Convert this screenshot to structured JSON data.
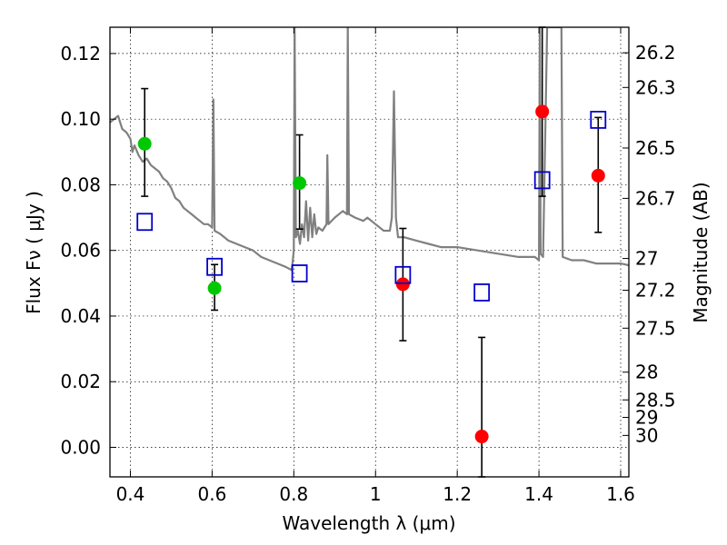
{
  "chart_data": {
    "type": "scatter",
    "xlabel": "Wavelength  λ (μm)",
    "ylabel": "Flux  Fν  ( μJy )",
    "y2label": "Magnitude (AB)",
    "xlim": [
      0.35,
      1.62
    ],
    "ylim": [
      -0.009,
      0.128
    ],
    "grid": true,
    "x_ticks": [
      0.4,
      0.6,
      0.8,
      1.0,
      1.2,
      1.4,
      1.6
    ],
    "x_tick_labels": [
      "0.4",
      "0.6",
      "0.8",
      "1",
      "1.2",
      "1.4",
      "1.6"
    ],
    "y_ticks": [
      0.0,
      0.02,
      0.04,
      0.06,
      0.08,
      0.1,
      0.12
    ],
    "y_tick_labels": [
      "0.00",
      "0.02",
      "0.04",
      "0.06",
      "0.08",
      "0.10",
      "0.12"
    ],
    "mag_ticks": [
      26.2,
      26.3,
      26.5,
      26.7,
      27,
      27.2,
      27.5,
      28,
      28.5,
      29,
      30
    ],
    "mag_tick_labels": [
      "26.2",
      "26.3",
      "26.5",
      "26.7",
      "27",
      "27.2",
      "27.5",
      "28",
      "28.5",
      "29",
      "30"
    ],
    "colors": {
      "detection_green": "#00c800",
      "detection_red": "#ff0000",
      "model": "#0000cc",
      "sed": "#808080",
      "errorbar": "#000000"
    },
    "series": [
      {
        "marker": "circle",
        "color": "#00c800",
        "points": [
          {
            "x": 0.435,
            "y": 0.0925,
            "ylo": 0.0765,
            "yhi": 0.1093
          },
          {
            "x": 0.606,
            "y": 0.0485,
            "ylo": 0.0418,
            "yhi": 0.0557
          },
          {
            "x": 0.814,
            "y": 0.0805,
            "ylo": 0.0665,
            "yhi": 0.0952
          }
        ]
      },
      {
        "marker": "circle",
        "color": "#ff0000",
        "points": [
          {
            "x": 1.067,
            "y": 0.0497,
            "ylo": 0.0325,
            "yhi": 0.0667
          },
          {
            "x": 1.26,
            "y": 0.0033,
            "ylo": -0.009,
            "yhi": 0.0335
          },
          {
            "x": 1.408,
            "y": 0.1023,
            "ylo": 0.0765,
            "yhi": 0.128
          },
          {
            "x": 1.545,
            "y": 0.0828,
            "ylo": 0.0655,
            "yhi": 0.1005
          }
        ]
      },
      {
        "marker": "open-square",
        "color": "#0000cc",
        "points": [
          {
            "x": 0.435,
            "y": 0.0687
          },
          {
            "x": 0.606,
            "y": 0.055
          },
          {
            "x": 0.814,
            "y": 0.053
          },
          {
            "x": 1.067,
            "y": 0.0525
          },
          {
            "x": 1.26,
            "y": 0.0472
          },
          {
            "x": 1.408,
            "y": 0.0814
          },
          {
            "x": 1.545,
            "y": 0.0998
          }
        ]
      }
    ],
    "sed_curve": [
      [
        0.35,
        0.099
      ],
      [
        0.36,
        0.1
      ],
      [
        0.37,
        0.101
      ],
      [
        0.375,
        0.099
      ],
      [
        0.38,
        0.097
      ],
      [
        0.39,
        0.096
      ],
      [
        0.4,
        0.094
      ],
      [
        0.405,
        0.09
      ],
      [
        0.41,
        0.092
      ],
      [
        0.42,
        0.089
      ],
      [
        0.43,
        0.087
      ],
      [
        0.44,
        0.088
      ],
      [
        0.45,
        0.086
      ],
      [
        0.46,
        0.085
      ],
      [
        0.47,
        0.084
      ],
      [
        0.48,
        0.082
      ],
      [
        0.49,
        0.081
      ],
      [
        0.5,
        0.079
      ],
      [
        0.51,
        0.076
      ],
      [
        0.52,
        0.075
      ],
      [
        0.53,
        0.073
      ],
      [
        0.54,
        0.072
      ],
      [
        0.55,
        0.071
      ],
      [
        0.56,
        0.07
      ],
      [
        0.57,
        0.069
      ],
      [
        0.58,
        0.068
      ],
      [
        0.59,
        0.068
      ],
      [
        0.6,
        0.067
      ],
      [
        0.603,
        0.106
      ],
      [
        0.606,
        0.066
      ],
      [
        0.62,
        0.065
      ],
      [
        0.64,
        0.063
      ],
      [
        0.66,
        0.062
      ],
      [
        0.68,
        0.061
      ],
      [
        0.7,
        0.06
      ],
      [
        0.72,
        0.058
      ],
      [
        0.74,
        0.057
      ],
      [
        0.76,
        0.056
      ],
      [
        0.78,
        0.055
      ],
      [
        0.795,
        0.054
      ],
      [
        0.8,
        0.06
      ],
      [
        0.802,
        0.128
      ],
      [
        0.805,
        0.064
      ],
      [
        0.81,
        0.066
      ],
      [
        0.815,
        0.062
      ],
      [
        0.82,
        0.068
      ],
      [
        0.825,
        0.064
      ],
      [
        0.83,
        0.075
      ],
      [
        0.835,
        0.063
      ],
      [
        0.84,
        0.073
      ],
      [
        0.845,
        0.064
      ],
      [
        0.85,
        0.071
      ],
      [
        0.855,
        0.065
      ],
      [
        0.86,
        0.067
      ],
      [
        0.87,
        0.066
      ],
      [
        0.88,
        0.068
      ],
      [
        0.882,
        0.089
      ],
      [
        0.885,
        0.068
      ],
      [
        0.9,
        0.07
      ],
      [
        0.92,
        0.072
      ],
      [
        0.93,
        0.071
      ],
      [
        0.932,
        0.128
      ],
      [
        0.935,
        0.071
      ],
      [
        0.95,
        0.07
      ],
      [
        0.97,
        0.069
      ],
      [
        0.98,
        0.07
      ],
      [
        1.0,
        0.068
      ],
      [
        1.02,
        0.066
      ],
      [
        1.035,
        0.066
      ],
      [
        1.04,
        0.07
      ],
      [
        1.045,
        0.1085
      ],
      [
        1.05,
        0.07
      ],
      [
        1.055,
        0.064
      ],
      [
        1.07,
        0.064
      ],
      [
        1.1,
        0.063
      ],
      [
        1.13,
        0.062
      ],
      [
        1.16,
        0.061
      ],
      [
        1.2,
        0.061
      ],
      [
        1.25,
        0.06
      ],
      [
        1.3,
        0.059
      ],
      [
        1.35,
        0.058
      ],
      [
        1.39,
        0.058
      ],
      [
        1.4,
        0.057
      ],
      [
        1.402,
        0.128
      ],
      [
        1.404,
        0.059
      ],
      [
        1.41,
        0.058
      ],
      [
        1.42,
        0.128
      ],
      [
        1.455,
        0.128
      ],
      [
        1.458,
        0.058
      ],
      [
        1.48,
        0.057
      ],
      [
        1.51,
        0.057
      ],
      [
        1.54,
        0.056
      ],
      [
        1.57,
        0.056
      ],
      [
        1.6,
        0.056
      ],
      [
        1.62,
        0.0555
      ]
    ]
  }
}
